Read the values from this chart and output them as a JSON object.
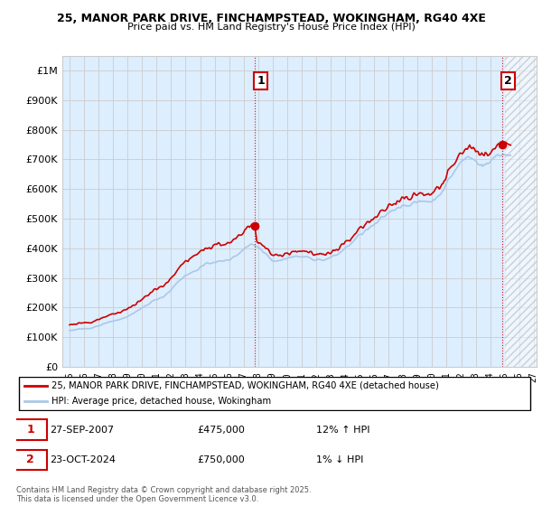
{
  "title1": "25, MANOR PARK DRIVE, FINCHAMPSTEAD, WOKINGHAM, RG40 4XE",
  "title2": "Price paid vs. HM Land Registry's House Price Index (HPI)",
  "legend_label1": "25, MANOR PARK DRIVE, FINCHAMPSTEAD, WOKINGHAM, RG40 4XE (detached house)",
  "legend_label2": "HPI: Average price, detached house, Wokingham",
  "sale1_date": "27-SEP-2007",
  "sale1_price": "£475,000",
  "sale1_hpi": "12% ↑ HPI",
  "sale2_date": "23-OCT-2024",
  "sale2_price": "£750,000",
  "sale2_hpi": "1% ↓ HPI",
  "footer": "Contains HM Land Registry data © Crown copyright and database right 2025.\nThis data is licensed under the Open Government Licence v3.0.",
  "color_red": "#cc0000",
  "color_blue": "#aac8e8",
  "color_grid": "#cccccc",
  "color_bg": "#ddeeff",
  "color_hatch_bg": "#e8e8e8",
  "bg_color": "#ffffff",
  "ylim_max": 1050000,
  "yticks": [
    0,
    100000,
    200000,
    300000,
    400000,
    500000,
    600000,
    700000,
    800000,
    900000,
    1000000
  ],
  "sale1_x": 2007.75,
  "sale1_y": 475000,
  "sale2_x": 2024.83,
  "sale2_y": 750000,
  "xmin": 1994.5,
  "xmax": 2027.2,
  "hatch_start": 2025.0
}
